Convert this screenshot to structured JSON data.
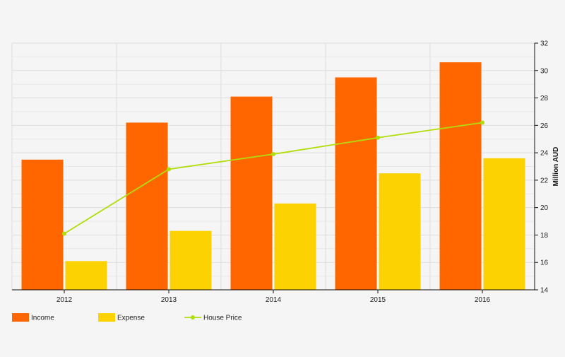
{
  "chart_data": {
    "type": "bar",
    "categories": [
      "2012",
      "2013",
      "2014",
      "2015",
      "2016"
    ],
    "series": [
      {
        "name": "Income",
        "type": "bar",
        "values": [
          23.5,
          26.2,
          28.1,
          29.5,
          30.6
        ]
      },
      {
        "name": "Expense",
        "type": "bar",
        "values": [
          16.1,
          18.3,
          20.3,
          22.5,
          23.6
        ]
      },
      {
        "name": "House Price",
        "type": "line",
        "values": [
          18.1,
          22.8,
          23.9,
          25.1,
          26.2
        ]
      }
    ],
    "title": "",
    "xlabel": "",
    "ylabel": "Million AUD",
    "ylim": [
      14,
      32
    ],
    "yticks": [
      14,
      16,
      18,
      20,
      22,
      24,
      26,
      28,
      30,
      32
    ],
    "y_axis_side": "right",
    "grid": true,
    "legend_position": "bottom-left"
  },
  "colors": {
    "income": "#ff6600",
    "expense": "#fcd202",
    "house_price": "#b0de09",
    "grid": "#dddddd",
    "axis": "#111111",
    "background": "#f5f5f5"
  }
}
